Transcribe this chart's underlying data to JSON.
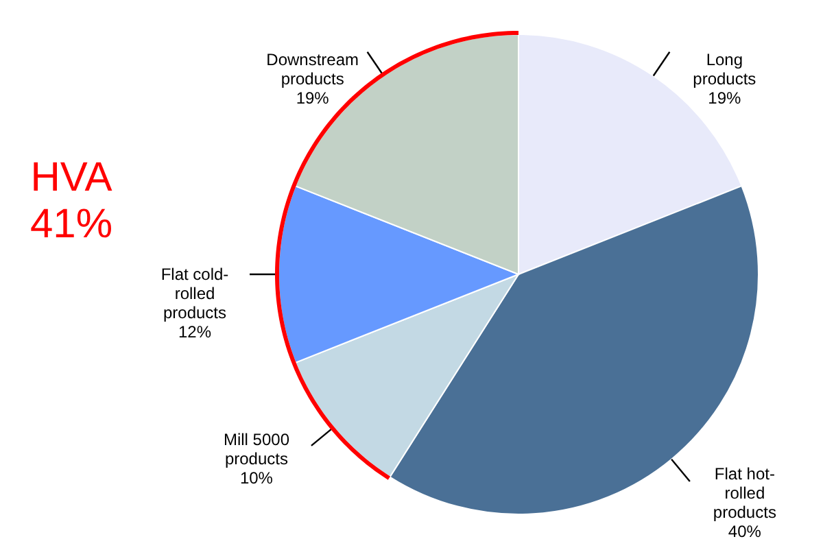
{
  "chart_data": {
    "type": "pie",
    "categories": [
      "Long products",
      "Flat hot-rolled products",
      "Mill 5000 products",
      "Flat cold-rolled products",
      "Downstream products"
    ],
    "values": [
      19,
      40,
      10,
      12,
      19
    ],
    "value_labels": [
      "19%",
      "40%",
      "10%",
      "12%",
      "19%"
    ],
    "colors": [
      "#e8eafa",
      "#4a7096",
      "#c3d9e4",
      "#6699ff",
      "#c2d1c6"
    ],
    "annotations": [
      "HVA 41%"
    ]
  }
}
